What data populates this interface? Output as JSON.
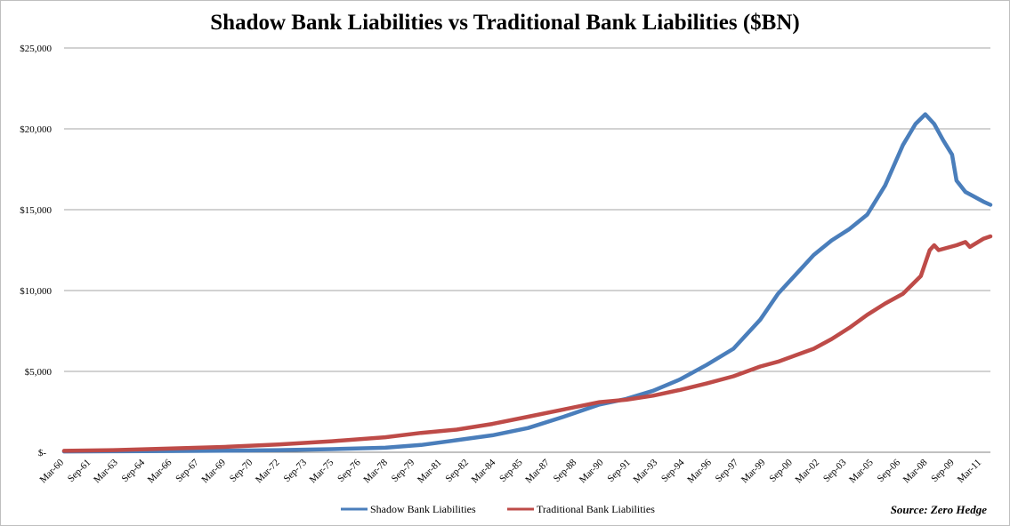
{
  "chart_data": {
    "type": "line",
    "title": "Shadow Bank Liabilities vs Traditional Bank Liabilities ($BN)",
    "xlabel": "",
    "ylabel": "",
    "ylim": [
      0,
      25000
    ],
    "y_ticks": [
      0,
      5000,
      10000,
      15000,
      20000,
      25000
    ],
    "y_tick_labels": [
      "$-",
      "$5,000",
      "$10,000",
      "$15,000",
      "$20,000",
      "$25,000"
    ],
    "x_range": [
      1960.0,
      2011.9
    ],
    "x_tick_labels": [
      "Mar-60",
      "Sep-61",
      "Mar-63",
      "Sep-64",
      "Mar-66",
      "Sep-67",
      "Mar-69",
      "Sep-70",
      "Mar-72",
      "Sep-73",
      "Mar-75",
      "Sep-76",
      "Mar-78",
      "Sep-79",
      "Mar-81",
      "Sep-82",
      "Mar-84",
      "Sep-85",
      "Mar-87",
      "Sep-88",
      "Mar-90",
      "Sep-91",
      "Mar-93",
      "Sep-94",
      "Mar-96",
      "Sep-97",
      "Mar-99",
      "Sep-00",
      "Mar-02",
      "Sep-03",
      "Mar-05",
      "Sep-06",
      "Mar-08",
      "Sep-09",
      "Mar-11"
    ],
    "grid": "horizontal",
    "legend_position": "bottom",
    "series": [
      {
        "name": "Shadow Bank Liabilities",
        "color": "#4a7ebb",
        "points": [
          [
            1960.0,
            50
          ],
          [
            1963.0,
            60
          ],
          [
            1966.0,
            75
          ],
          [
            1969.0,
            95
          ],
          [
            1972.0,
            130
          ],
          [
            1975.0,
            190
          ],
          [
            1978.0,
            280
          ],
          [
            1980.0,
            450
          ],
          [
            1982.0,
            750
          ],
          [
            1984.0,
            1050
          ],
          [
            1986.0,
            1500
          ],
          [
            1988.0,
            2200
          ],
          [
            1990.0,
            2950
          ],
          [
            1991.5,
            3300
          ],
          [
            1993.0,
            3800
          ],
          [
            1994.5,
            4500
          ],
          [
            1996.0,
            5400
          ],
          [
            1997.5,
            6400
          ],
          [
            1999.0,
            8200
          ],
          [
            2000.0,
            9800
          ],
          [
            2001.0,
            11000
          ],
          [
            2002.0,
            12200
          ],
          [
            2003.0,
            13100
          ],
          [
            2004.0,
            13800
          ],
          [
            2005.0,
            14700
          ],
          [
            2006.0,
            16500
          ],
          [
            2007.0,
            19000
          ],
          [
            2007.7,
            20300
          ],
          [
            2008.25,
            20900
          ],
          [
            2008.75,
            20300
          ],
          [
            2009.25,
            19300
          ],
          [
            2009.75,
            18400
          ],
          [
            2010.0,
            16800
          ],
          [
            2010.5,
            16100
          ],
          [
            2011.0,
            15800
          ],
          [
            2011.5,
            15500
          ],
          [
            2011.9,
            15300
          ]
        ]
      },
      {
        "name": "Traditional Bank Liabilities",
        "color": "#be4b48",
        "points": [
          [
            1960.0,
            90
          ],
          [
            1963.0,
            140
          ],
          [
            1966.0,
            230
          ],
          [
            1969.0,
            330
          ],
          [
            1972.0,
            480
          ],
          [
            1975.0,
            680
          ],
          [
            1978.0,
            930
          ],
          [
            1980.0,
            1200
          ],
          [
            1982.0,
            1400
          ],
          [
            1984.0,
            1750
          ],
          [
            1986.0,
            2200
          ],
          [
            1988.0,
            2650
          ],
          [
            1990.0,
            3100
          ],
          [
            1991.5,
            3250
          ],
          [
            1993.0,
            3500
          ],
          [
            1994.5,
            3850
          ],
          [
            1996.0,
            4250
          ],
          [
            1997.5,
            4700
          ],
          [
            1999.0,
            5300
          ],
          [
            2000.0,
            5600
          ],
          [
            2001.0,
            6000
          ],
          [
            2002.0,
            6400
          ],
          [
            2003.0,
            7000
          ],
          [
            2004.0,
            7700
          ],
          [
            2005.0,
            8500
          ],
          [
            2006.0,
            9200
          ],
          [
            2007.0,
            9800
          ],
          [
            2008.0,
            10900
          ],
          [
            2008.5,
            12500
          ],
          [
            2008.75,
            12800
          ],
          [
            2009.0,
            12500
          ],
          [
            2010.0,
            12800
          ],
          [
            2010.5,
            13000
          ],
          [
            2010.75,
            12700
          ],
          [
            2011.5,
            13200
          ],
          [
            2011.9,
            13350
          ]
        ]
      }
    ],
    "source": "Source: Zero Hedge"
  }
}
